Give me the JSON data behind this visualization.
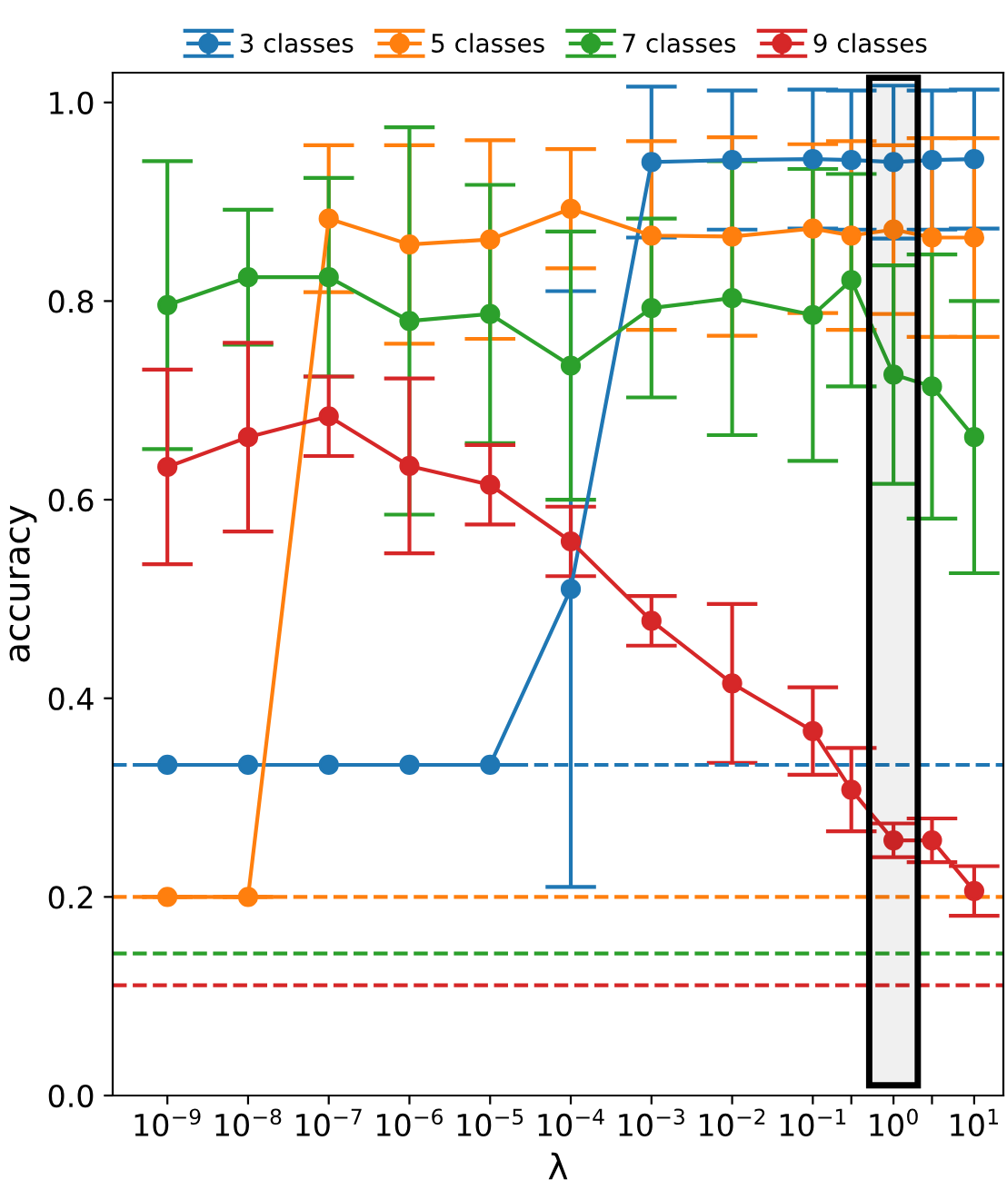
{
  "chart_data": {
    "type": "line",
    "xlabel": "λ",
    "ylabel": "accuracy",
    "log": "x",
    "marker": "circle",
    "legend": "top",
    "grid": false,
    "x": [
      1e-09,
      1e-08,
      1e-07,
      1e-06,
      1e-05,
      0.0001,
      0.001,
      0.01,
      0.1,
      0.3,
      1,
      3,
      10
    ],
    "xlim": [
      2.1e-10,
      23
    ],
    "xticks": [
      {
        "value": 1e-09,
        "label": "10$^{−9}$"
      },
      {
        "value": 1e-08,
        "label": "10$^{−8}$"
      },
      {
        "value": 1e-07,
        "label": "10$^{−7}$"
      },
      {
        "value": 1e-06,
        "label": "10$^{−6}$"
      },
      {
        "value": 1e-05,
        "label": "10$^{−5}$"
      },
      {
        "value": 0.0001,
        "label": "10$^{−4}$"
      },
      {
        "value": 0.001,
        "label": "10$^{−3}$"
      },
      {
        "value": 0.01,
        "label": "10$^{−2}$"
      },
      {
        "value": 0.1,
        "label": "10$^{−1}$"
      },
      {
        "value": 0.3,
        "label": null
      },
      {
        "value": 1,
        "label": "10$^{0}$"
      },
      {
        "value": 3,
        "label": null
      },
      {
        "value": 10,
        "label": "10$^{1}$"
      }
    ],
    "ylim": [
      0,
      1.03
    ],
    "yticks": [
      {
        "value": 0,
        "label": "0.0"
      },
      {
        "value": 0.2,
        "label": "0.2"
      },
      {
        "value": 0.4,
        "label": "0.4"
      },
      {
        "value": 0.6,
        "label": "0.6"
      },
      {
        "value": 0.8,
        "label": "0.8"
      },
      {
        "value": 1.0,
        "label": "1.0"
      }
    ],
    "series": [
      {
        "name": "3 classes",
        "color": "#1f77b4",
        "values": [
          0.333,
          0.333,
          0.333,
          0.333,
          0.333,
          0.51,
          0.94,
          0.942,
          0.943,
          0.942,
          0.94,
          0.942,
          0.943
        ],
        "errors": [
          null,
          null,
          null,
          null,
          null,
          0.3,
          0.076,
          0.07,
          0.07,
          0.07,
          0.077,
          0.07,
          0.07
        ]
      },
      {
        "name": "5 classes",
        "color": "#ff7f0e",
        "values": [
          0.2,
          0.2,
          0.883,
          0.857,
          0.862,
          0.893,
          0.866,
          0.865,
          0.873,
          0.866,
          0.872,
          0.864,
          0.864
        ],
        "errors": [
          null,
          null,
          0.074,
          0.1,
          0.1,
          0.06,
          0.095,
          0.1,
          0.085,
          0.095,
          0.085,
          0.1,
          0.1
        ]
      },
      {
        "name": "7 classes",
        "color": "#2ca02c",
        "values": [
          0.796,
          0.824,
          0.824,
          0.78,
          0.787,
          0.735,
          0.793,
          0.803,
          0.786,
          0.821,
          0.726,
          0.714,
          0.663
        ],
        "errors": [
          0.145,
          0.068,
          0.1,
          0.195,
          0.13,
          0.135,
          0.09,
          0.138,
          0.147,
          0.107,
          0.11,
          0.133,
          0.137
        ]
      },
      {
        "name": "9 classes",
        "color": "#d62728",
        "values": [
          0.633,
          0.663,
          0.684,
          0.634,
          0.615,
          0.558,
          0.478,
          0.415,
          0.367,
          0.308,
          0.257,
          0.257,
          0.206
        ],
        "errors": [
          0.098,
          0.095,
          0.04,
          0.088,
          0.04,
          0.035,
          0.025,
          0.08,
          0.044,
          0.042,
          0.017,
          0.022,
          0.025
        ]
      }
    ],
    "ref_lines": [
      {
        "axis": "y",
        "value": 0.333,
        "color": "#1f77b4",
        "line_style": "dashed"
      },
      {
        "axis": "y",
        "value": 0.2,
        "color": "#ff7f0e",
        "line_style": "dashed"
      },
      {
        "axis": "y",
        "value": 0.143,
        "color": "#2ca02c",
        "line_style": "dashed"
      },
      {
        "axis": "y",
        "value": 0.111,
        "color": "#d62728",
        "line_style": "dashed"
      }
    ],
    "bands": [
      {
        "axis": "x",
        "from": 0.5,
        "to": 2.0,
        "color": "#000000"
      }
    ]
  }
}
